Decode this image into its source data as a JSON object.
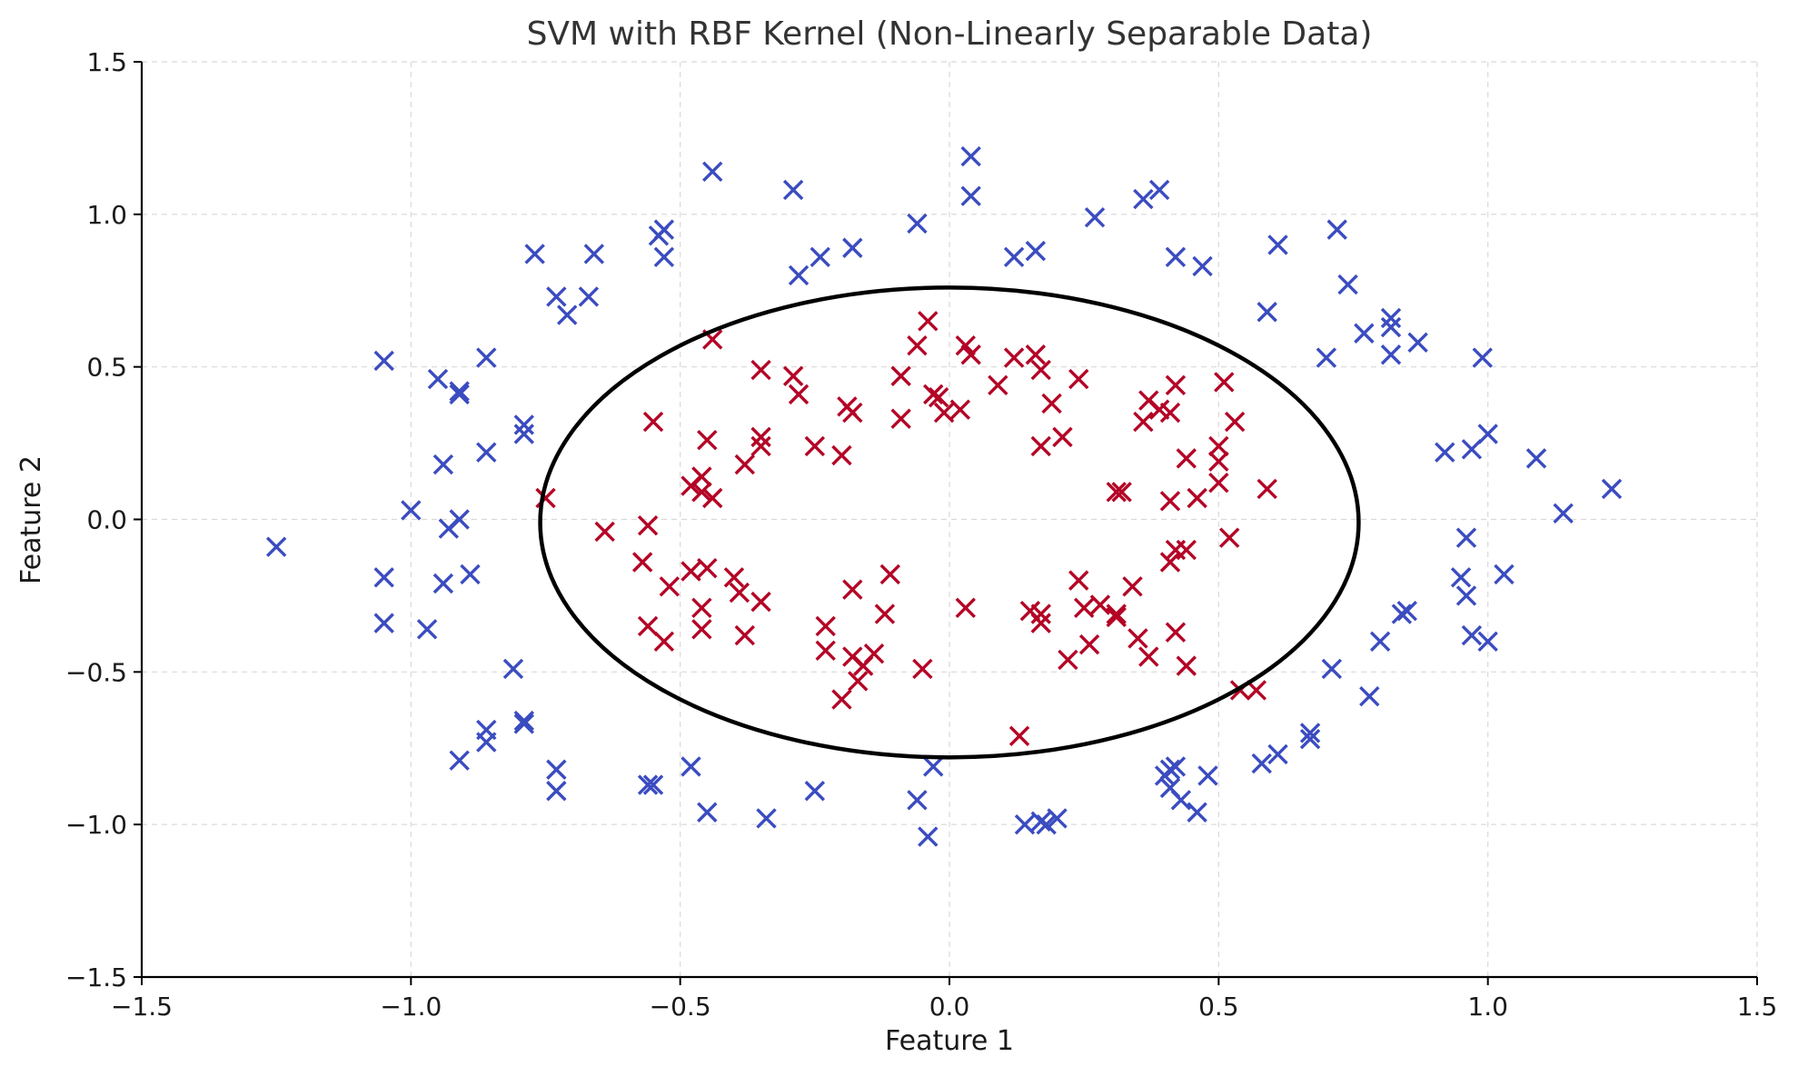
{
  "chart_data": {
    "type": "scatter",
    "title": "SVM with RBF Kernel (Non-Linearly Separable Data)",
    "xlabel": "Feature 1",
    "ylabel": "Feature 2",
    "xlim": [
      -1.5,
      1.5
    ],
    "ylim": [
      -1.5,
      1.5
    ],
    "xticks": [
      -1.5,
      -1.0,
      -0.5,
      0.0,
      0.5,
      1.0,
      1.5
    ],
    "yticks": [
      -1.5,
      -1.0,
      -0.5,
      0.0,
      0.5,
      1.0,
      1.5
    ],
    "xtick_labels": [
      "−1.5",
      "−1.0",
      "−0.5",
      "0.0",
      "0.5",
      "1.0",
      "1.5"
    ],
    "ytick_labels": [
      "−1.5",
      "−1.0",
      "−0.5",
      "0.0",
      "0.5",
      "1.0",
      "1.5"
    ],
    "grid": true,
    "marker": "x",
    "decision_boundary": {
      "shape": "ellipse",
      "center": [
        0.0,
        -0.01
      ],
      "x_radius": 0.76,
      "y_radius": 0.77,
      "color": "#000000"
    },
    "series": [
      {
        "color": "#3b4cc0",
        "points": [
          [
            -1.25,
            -0.09
          ],
          [
            -1.05,
            0.52
          ],
          [
            -1.05,
            -0.19
          ],
          [
            -1.05,
            -0.34
          ],
          [
            -1.0,
            0.03
          ],
          [
            -0.97,
            -0.36
          ],
          [
            -0.95,
            0.46
          ],
          [
            -0.94,
            0.18
          ],
          [
            -0.94,
            -0.21
          ],
          [
            -0.93,
            -0.03
          ],
          [
            -0.91,
            0.41
          ],
          [
            -0.91,
            0.42
          ],
          [
            -0.91,
            0.0
          ],
          [
            -0.89,
            -0.18
          ],
          [
            -0.86,
            0.53
          ],
          [
            -0.86,
            0.22
          ],
          [
            -0.81,
            -0.49
          ],
          [
            -0.79,
            0.31
          ],
          [
            -0.79,
            0.28
          ],
          [
            -0.79,
            -0.66
          ],
          [
            -0.79,
            -0.67
          ],
          [
            -0.77,
            0.87
          ],
          [
            -0.73,
            0.73
          ],
          [
            -0.71,
            0.67
          ],
          [
            -0.73,
            -0.82
          ],
          [
            -0.73,
            -0.89
          ],
          [
            -0.67,
            0.73
          ],
          [
            -0.66,
            0.87
          ],
          [
            -0.54,
            0.93
          ],
          [
            -0.53,
            0.95
          ],
          [
            -0.53,
            0.86
          ],
          [
            -0.44,
            1.14
          ],
          [
            -0.29,
            1.08
          ],
          [
            -0.28,
            0.8
          ],
          [
            -0.24,
            0.86
          ],
          [
            -0.18,
            0.89
          ],
          [
            -0.06,
            0.97
          ],
          [
            0.04,
            1.19
          ],
          [
            0.04,
            1.06
          ],
          [
            0.12,
            0.86
          ],
          [
            0.16,
            0.88
          ],
          [
            0.27,
            0.99
          ],
          [
            0.36,
            1.05
          ],
          [
            0.39,
            1.08
          ],
          [
            0.42,
            0.86
          ],
          [
            0.47,
            0.83
          ],
          [
            0.59,
            0.68
          ],
          [
            0.61,
            0.9
          ],
          [
            0.7,
            0.53
          ],
          [
            0.72,
            0.95
          ],
          [
            0.74,
            0.77
          ],
          [
            0.77,
            0.61
          ],
          [
            0.82,
            0.63
          ],
          [
            0.82,
            0.66
          ],
          [
            0.82,
            0.54
          ],
          [
            0.87,
            0.58
          ],
          [
            0.92,
            0.22
          ],
          [
            0.97,
            0.23
          ],
          [
            0.99,
            0.53
          ],
          [
            1.0,
            0.28
          ],
          [
            1.09,
            0.2
          ],
          [
            1.14,
            0.02
          ],
          [
            1.23,
            0.1
          ],
          [
            0.96,
            -0.06
          ],
          [
            0.95,
            -0.19
          ],
          [
            0.96,
            -0.25
          ],
          [
            1.03,
            -0.18
          ],
          [
            0.97,
            -0.38
          ],
          [
            1.0,
            -0.4
          ],
          [
            0.84,
            -0.31
          ],
          [
            0.85,
            -0.3
          ],
          [
            0.8,
            -0.4
          ],
          [
            0.71,
            -0.49
          ],
          [
            0.78,
            -0.58
          ],
          [
            0.67,
            -0.7
          ],
          [
            0.67,
            -0.72
          ],
          [
            0.58,
            -0.8
          ],
          [
            0.61,
            -0.77
          ],
          [
            0.48,
            -0.84
          ],
          [
            0.46,
            -0.96
          ],
          [
            0.42,
            -0.81
          ],
          [
            0.43,
            -0.92
          ],
          [
            0.41,
            -0.88
          ],
          [
            0.4,
            -0.84
          ],
          [
            0.41,
            -0.82
          ],
          [
            0.14,
            -1.0
          ],
          [
            0.17,
            -0.99
          ],
          [
            0.18,
            -1.0
          ],
          [
            0.2,
            -0.98
          ],
          [
            -0.03,
            -0.81
          ],
          [
            -0.04,
            -1.04
          ],
          [
            -0.06,
            -0.92
          ],
          [
            -0.25,
            -0.89
          ],
          [
            -0.34,
            -0.98
          ],
          [
            -0.45,
            -0.96
          ],
          [
            -0.48,
            -0.81
          ],
          [
            -0.56,
            -0.87
          ],
          [
            -0.55,
            -0.87
          ],
          [
            -0.86,
            -0.69
          ],
          [
            -0.86,
            -0.73
          ],
          [
            -0.91,
            -0.79
          ]
        ]
      },
      {
        "color": "#b40426",
        "points": [
          [
            -0.75,
            0.07
          ],
          [
            -0.64,
            -0.04
          ],
          [
            -0.56,
            -0.02
          ],
          [
            -0.57,
            -0.14
          ],
          [
            -0.56,
            -0.35
          ],
          [
            -0.55,
            0.32
          ],
          [
            -0.53,
            -0.4
          ],
          [
            -0.52,
            -0.22
          ],
          [
            -0.48,
            -0.17
          ],
          [
            -0.48,
            0.11
          ],
          [
            -0.46,
            0.09
          ],
          [
            -0.46,
            0.14
          ],
          [
            -0.45,
            0.26
          ],
          [
            -0.44,
            0.07
          ],
          [
            -0.46,
            -0.29
          ],
          [
            -0.46,
            -0.36
          ],
          [
            -0.45,
            -0.16
          ],
          [
            -0.44,
            0.59
          ],
          [
            -0.4,
            -0.19
          ],
          [
            -0.39,
            -0.24
          ],
          [
            -0.38,
            -0.38
          ],
          [
            -0.38,
            0.18
          ],
          [
            -0.35,
            0.49
          ],
          [
            -0.35,
            0.24
          ],
          [
            -0.35,
            0.27
          ],
          [
            -0.35,
            -0.27
          ],
          [
            -0.29,
            0.47
          ],
          [
            -0.28,
            0.41
          ],
          [
            -0.25,
            0.24
          ],
          [
            -0.23,
            -0.35
          ],
          [
            -0.23,
            -0.43
          ],
          [
            -0.2,
            -0.59
          ],
          [
            -0.2,
            0.21
          ],
          [
            -0.19,
            0.37
          ],
          [
            -0.18,
            0.35
          ],
          [
            -0.18,
            -0.23
          ],
          [
            -0.18,
            -0.45
          ],
          [
            -0.17,
            -0.53
          ],
          [
            -0.16,
            -0.48
          ],
          [
            -0.14,
            -0.44
          ],
          [
            -0.12,
            -0.31
          ],
          [
            -0.11,
            -0.18
          ],
          [
            -0.09,
            0.47
          ],
          [
            -0.09,
            0.33
          ],
          [
            -0.06,
            0.57
          ],
          [
            -0.05,
            -0.49
          ],
          [
            -0.04,
            0.65
          ],
          [
            -0.03,
            0.41
          ],
          [
            -0.02,
            0.4
          ],
          [
            -0.01,
            0.35
          ],
          [
            0.02,
            0.36
          ],
          [
            0.03,
            0.57
          ],
          [
            0.04,
            0.54
          ],
          [
            0.03,
            -0.29
          ],
          [
            0.09,
            0.44
          ],
          [
            0.12,
            0.53
          ],
          [
            0.13,
            -0.71
          ],
          [
            0.15,
            -0.3
          ],
          [
            0.16,
            0.54
          ],
          [
            0.17,
            -0.31
          ],
          [
            0.17,
            0.49
          ],
          [
            0.17,
            -0.34
          ],
          [
            0.17,
            0.24
          ],
          [
            0.19,
            0.38
          ],
          [
            0.21,
            0.27
          ],
          [
            0.22,
            -0.46
          ],
          [
            0.24,
            0.46
          ],
          [
            0.24,
            -0.2
          ],
          [
            0.25,
            -0.29
          ],
          [
            0.26,
            -0.41
          ],
          [
            0.28,
            -0.28
          ],
          [
            0.31,
            -0.31
          ],
          [
            0.31,
            0.09
          ],
          [
            0.31,
            -0.32
          ],
          [
            0.32,
            0.09
          ],
          [
            0.34,
            -0.22
          ],
          [
            0.35,
            -0.39
          ],
          [
            0.36,
            0.32
          ],
          [
            0.37,
            0.39
          ],
          [
            0.37,
            -0.45
          ],
          [
            0.39,
            0.36
          ],
          [
            0.41,
            0.35
          ],
          [
            0.41,
            0.06
          ],
          [
            0.42,
            -0.1
          ],
          [
            0.41,
            -0.14
          ],
          [
            0.42,
            -0.37
          ],
          [
            0.42,
            0.44
          ],
          [
            0.44,
            -0.1
          ],
          [
            0.44,
            0.2
          ],
          [
            0.44,
            -0.48
          ],
          [
            0.46,
            0.07
          ],
          [
            0.5,
            0.24
          ],
          [
            0.5,
            0.19
          ],
          [
            0.5,
            0.12
          ],
          [
            0.51,
            0.45
          ],
          [
            0.52,
            -0.06
          ],
          [
            0.53,
            0.32
          ],
          [
            0.54,
            -0.56
          ],
          [
            0.57,
            -0.56
          ],
          [
            0.59,
            0.1
          ]
        ]
      }
    ]
  }
}
